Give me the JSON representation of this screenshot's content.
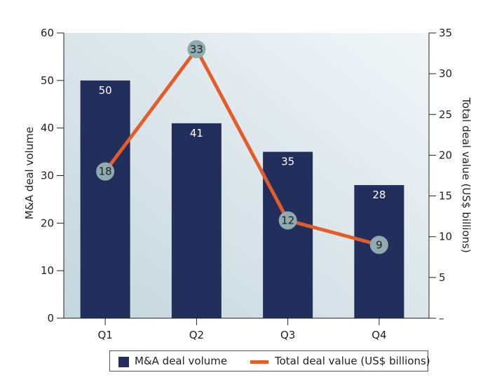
{
  "chart_data": {
    "type": "bar+line",
    "categories": [
      "Q1",
      "Q2",
      "Q3",
      "Q4"
    ],
    "series": [
      {
        "name": "M&A deal volume",
        "type": "bar",
        "axis": "left",
        "values": [
          50,
          41,
          35,
          28
        ],
        "color": "#222e5b"
      },
      {
        "name": "Total deal value (US$ billions)",
        "type": "line",
        "axis": "right",
        "values": [
          18,
          33,
          12,
          9
        ],
        "color": "#e35d2a",
        "marker_color": "#8eacb0"
      }
    ],
    "ylabel": "M&A deal volume",
    "ylabel_right": "Total deal value (US$ billions)",
    "ylim": [
      0,
      60
    ],
    "ylim_right": [
      0,
      35
    ],
    "yticks": [
      "0",
      "10",
      "20",
      "30",
      "40",
      "50",
      "60"
    ],
    "yticks_right": [
      "–",
      "5",
      "10",
      "15",
      "20",
      "25",
      "30",
      "35"
    ],
    "legend": "bottom",
    "grid": false
  }
}
